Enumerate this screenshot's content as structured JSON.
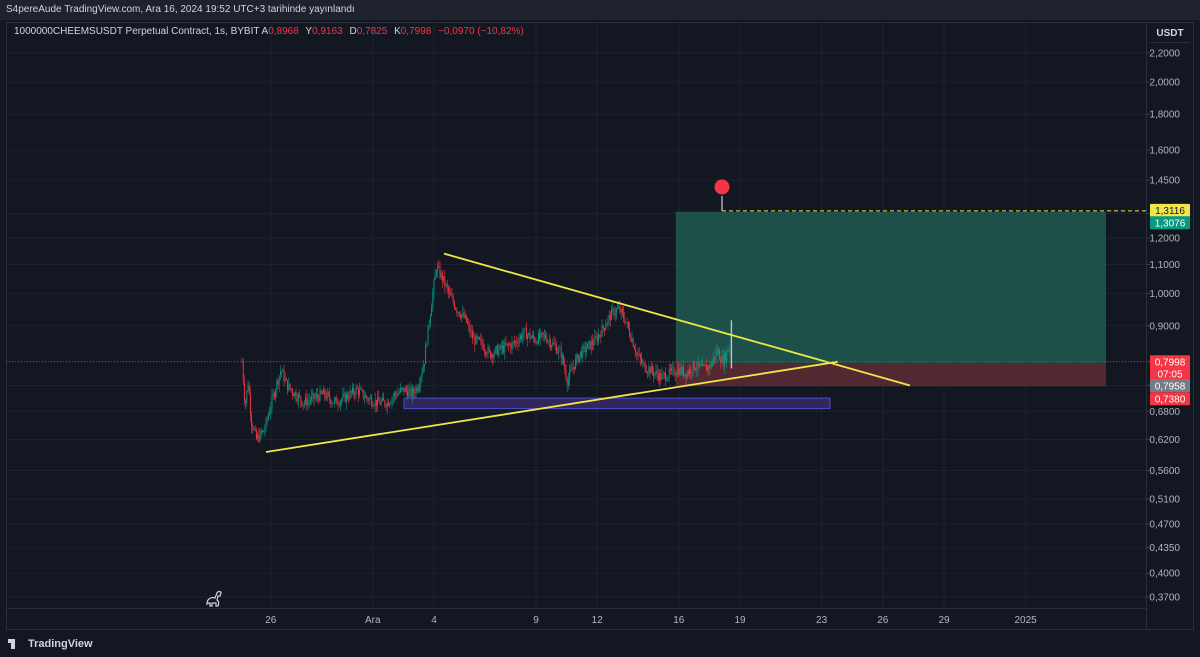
{
  "header": {
    "published_text": "S4pereAude TradingView.com, Ara 16, 2024 19:52 UTC+3 tarihinde yayınlandı"
  },
  "legend": {
    "symbol": "1000000CHEEMSUSDT Perpetual Contract, 1s, BYBIT",
    "open_label": "A",
    "open_value": "0,8968",
    "high_label": "Y",
    "high_value": "0,9163",
    "low_label": "D",
    "low_value": "0,7825",
    "close_label": "K",
    "close_value": "0,7998",
    "change_value": "−0,0970 (−10,82%)"
  },
  "axis": {
    "unit": "USDT"
  },
  "footer": {
    "brand": "TradingView"
  },
  "colors": {
    "background": "#131722",
    "up": "#089981",
    "down": "#f23645",
    "trendline": "#f0e64a",
    "target_zone": "#1f5a50",
    "stop_zone": "#5a2a33",
    "support_box": "#3a2a6a"
  },
  "chart_data": {
    "type": "candlestick",
    "scale": "log",
    "ylim": [
      0.36,
      2.3
    ],
    "y_ticks": [
      "2,2000",
      "2,0000",
      "1,8000",
      "1,6000",
      "1,4500",
      "1,3000",
      "1,2000",
      "1,1000",
      "1,0000",
      "0,9000",
      "0,8000",
      "0,7400",
      "0,6800",
      "0,6200",
      "0,5600",
      "0,5100",
      "0,4700",
      "0,4350",
      "0,4000",
      "0,3700"
    ],
    "x_ticks": [
      "26",
      "Ara",
      "4",
      "9",
      "12",
      "16",
      "19",
      "23",
      "26",
      "29",
      "2025"
    ],
    "price_labels": [
      {
        "text": "1,3116",
        "value": 1.3116,
        "color": "#f0e64a",
        "text_color": "#131722"
      },
      {
        "text": "1,3076",
        "value": 1.3076,
        "color": "#089981",
        "text_color": "#ffffff"
      },
      {
        "text": "0,7998",
        "value": 0.7998,
        "color": "#f23645",
        "text_color": "#ffffff"
      },
      {
        "text": "07:05",
        "value": 0.7998,
        "color": "#f23645",
        "text_color": "#ffffff"
      },
      {
        "text": "0,7958",
        "value": 0.7958,
        "color": "#787b86",
        "text_color": "#ffffff"
      },
      {
        "text": "0,7380",
        "value": 0.738,
        "color": "#f23645",
        "text_color": "#ffffff"
      }
    ],
    "position": {
      "entry": 0.7958,
      "target": 1.3076,
      "stop": 0.738
    },
    "trendlines": [
      {
        "name": "upper-trendline",
        "from": [
          "Dec 4",
          "1,1400"
        ],
        "to": [
          "Dec 24",
          "0,7400"
        ],
        "color": "#f0e64a"
      },
      {
        "name": "lower-trendline",
        "from": [
          "Nov 27",
          "0,5950"
        ],
        "to": [
          "Dec 21",
          "0,8000"
        ],
        "color": "#f0e64a"
      }
    ],
    "support_zone": [
      0.686,
      0.71
    ],
    "last_price": "0,7998"
  }
}
